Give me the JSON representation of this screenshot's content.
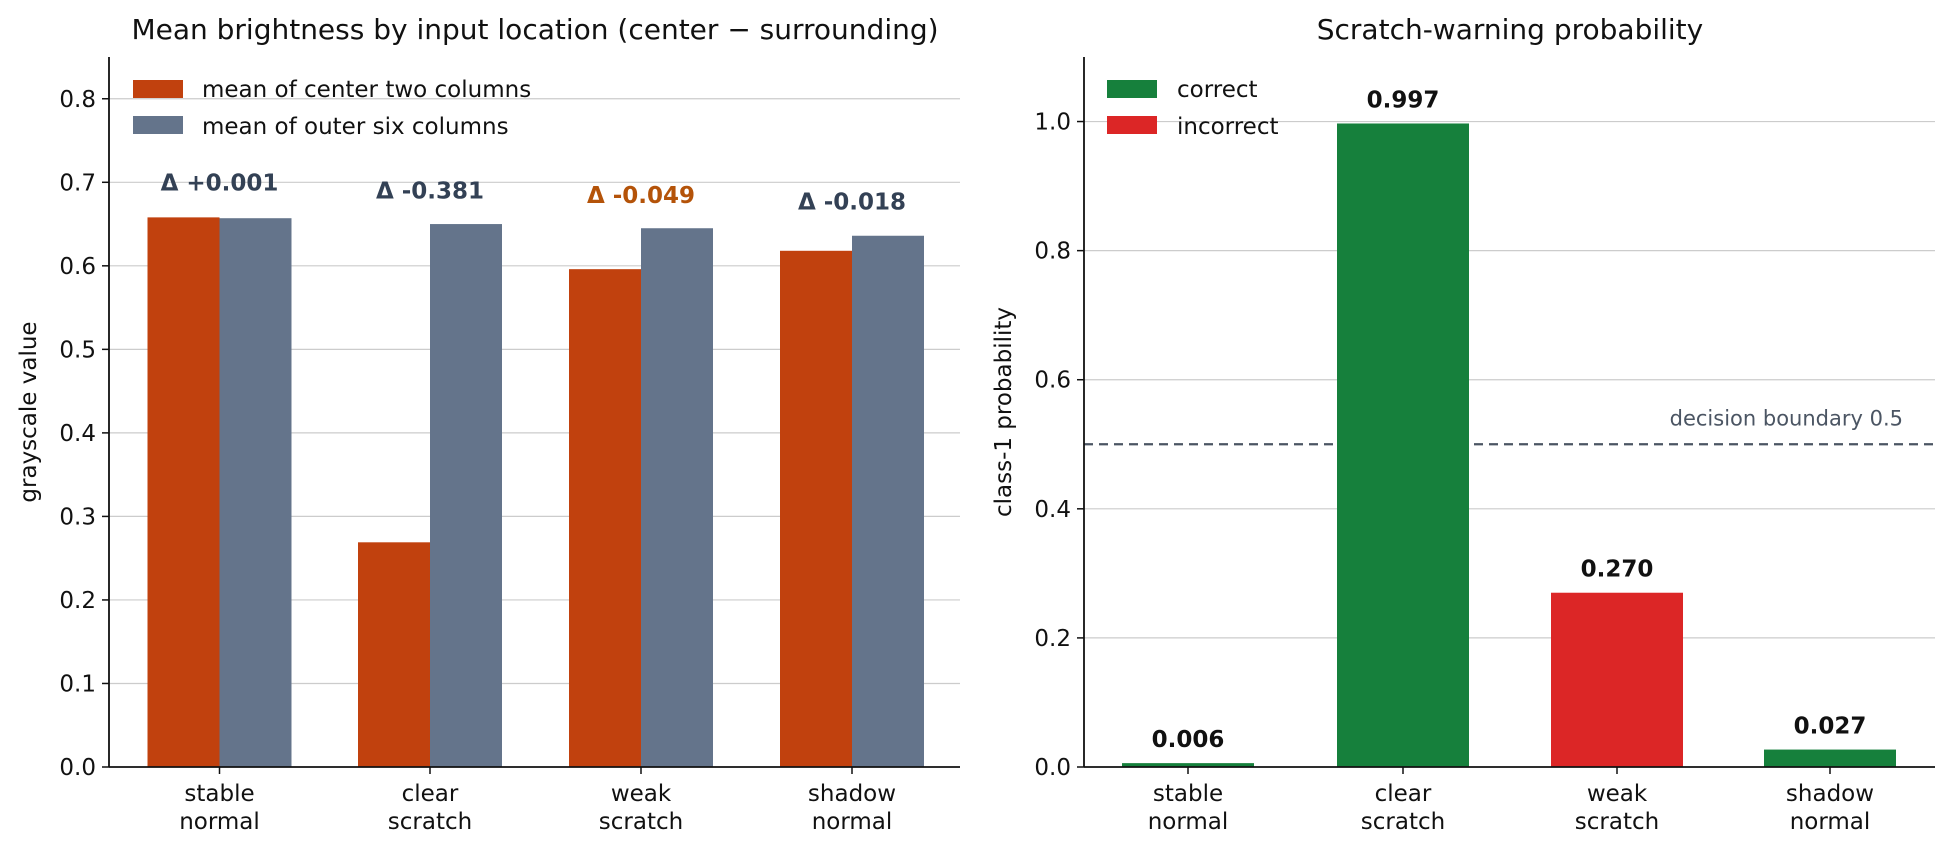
{
  "chart_data": [
    {
      "type": "bar",
      "title": "Mean brightness by input location (center − surrounding)",
      "xlabel": "",
      "ylabel": "grayscale value",
      "ylim": [
        0,
        0.85
      ],
      "yticks": [
        0.0,
        0.1,
        0.2,
        0.3,
        0.4,
        0.5,
        0.6,
        0.7,
        0.8
      ],
      "ytick_labels": [
        "0.0",
        "0.1",
        "0.2",
        "0.3",
        "0.4",
        "0.5",
        "0.6",
        "0.7",
        "0.8"
      ],
      "grid": true,
      "legend_position": "top-left",
      "categories": [
        [
          "stable",
          "normal"
        ],
        [
          "clear",
          "scratch"
        ],
        [
          "weak",
          "scratch"
        ],
        [
          "shadow",
          "normal"
        ]
      ],
      "series": [
        {
          "name": "mean of center two columns",
          "color": "#c1410e",
          "values": [
            0.658,
            0.269,
            0.596,
            0.618
          ]
        },
        {
          "name": "mean of outer six columns",
          "color": "#64748b",
          "values": [
            0.657,
            0.65,
            0.645,
            0.636
          ]
        }
      ],
      "annotations": [
        {
          "text": "Δ +0.001",
          "color": "#334155",
          "y": 0.7
        },
        {
          "text": "Δ -0.381",
          "color": "#334155",
          "y": 0.69
        },
        {
          "text": "Δ -0.049",
          "color": "#b45309",
          "y": 0.685
        },
        {
          "text": "Δ -0.018",
          "color": "#334155",
          "y": 0.677
        }
      ]
    },
    {
      "type": "bar",
      "title": "Scratch-warning probability",
      "xlabel": "",
      "ylabel": "class-1 probability",
      "ylim": [
        0,
        1.1
      ],
      "yticks": [
        0.0,
        0.2,
        0.4,
        0.6,
        0.8,
        1.0
      ],
      "ytick_labels": [
        "0.0",
        "0.2",
        "0.4",
        "0.6",
        "0.8",
        "1.0"
      ],
      "grid": true,
      "legend_position": "top-left",
      "categories": [
        [
          "stable",
          "normal"
        ],
        [
          "clear",
          "scratch"
        ],
        [
          "weak",
          "scratch"
        ],
        [
          "shadow",
          "normal"
        ]
      ],
      "values": [
        0.006,
        0.997,
        0.27,
        0.027
      ],
      "value_labels": [
        "0.006",
        "0.997",
        "0.270",
        "0.027"
      ],
      "bar_colors": [
        "#16803c",
        "#16803c",
        "#dc2626",
        "#16803c"
      ],
      "legend": [
        {
          "name": "correct",
          "color": "#16803c"
        },
        {
          "name": "incorrect",
          "color": "#dc2626"
        }
      ],
      "reference_line": {
        "y": 0.5,
        "label": "decision boundary 0.5",
        "color": "#4b5563"
      }
    }
  ]
}
